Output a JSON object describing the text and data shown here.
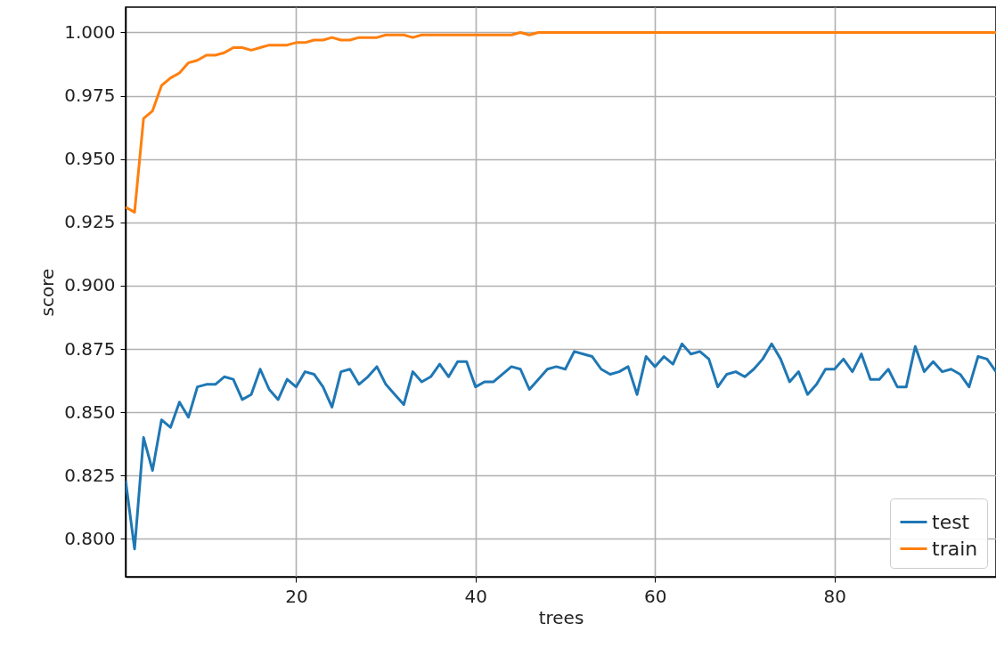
{
  "chart_data": {
    "type": "line",
    "xlabel": "trees",
    "ylabel": "score",
    "x": [
      1,
      2,
      3,
      4,
      5,
      6,
      7,
      8,
      9,
      10,
      11,
      12,
      13,
      14,
      15,
      16,
      17,
      18,
      19,
      20,
      21,
      22,
      23,
      24,
      25,
      26,
      27,
      28,
      29,
      30,
      31,
      32,
      33,
      34,
      35,
      36,
      37,
      38,
      39,
      40,
      41,
      42,
      43,
      44,
      45,
      46,
      47,
      48,
      49,
      50,
      51,
      52,
      53,
      54,
      55,
      56,
      57,
      58,
      59,
      60,
      61,
      62,
      63,
      64,
      65,
      66,
      67,
      68,
      69,
      70,
      71,
      72,
      73,
      74,
      75,
      76,
      77,
      78,
      79,
      80,
      81,
      82,
      83,
      84,
      85,
      86,
      87,
      88,
      89,
      90,
      91,
      92,
      93,
      94,
      95,
      96,
      97,
      98
    ],
    "series": [
      {
        "name": "test",
        "color": "#1f77b4",
        "values": [
          0.823,
          0.796,
          0.84,
          0.827,
          0.847,
          0.844,
          0.854,
          0.848,
          0.86,
          0.861,
          0.861,
          0.864,
          0.863,
          0.855,
          0.857,
          0.867,
          0.859,
          0.855,
          0.863,
          0.86,
          0.866,
          0.865,
          0.86,
          0.852,
          0.866,
          0.867,
          0.861,
          0.864,
          0.868,
          0.861,
          0.857,
          0.853,
          0.866,
          0.862,
          0.864,
          0.869,
          0.864,
          0.87,
          0.87,
          0.86,
          0.862,
          0.862,
          0.865,
          0.868,
          0.867,
          0.859,
          0.863,
          0.867,
          0.868,
          0.867,
          0.874,
          0.873,
          0.872,
          0.867,
          0.865,
          0.866,
          0.868,
          0.857,
          0.872,
          0.868,
          0.872,
          0.869,
          0.877,
          0.873,
          0.874,
          0.871,
          0.86,
          0.865,
          0.866,
          0.864,
          0.867,
          0.871,
          0.877,
          0.871,
          0.862,
          0.866,
          0.857,
          0.861,
          0.867,
          0.867,
          0.871,
          0.866,
          0.873,
          0.863,
          0.863,
          0.867,
          0.86,
          0.86,
          0.876,
          0.866,
          0.87,
          0.866,
          0.867,
          0.865,
          0.86,
          0.872,
          0.871,
          0.866
        ]
      },
      {
        "name": "train",
        "color": "#ff7f0e",
        "values": [
          0.931,
          0.929,
          0.966,
          0.969,
          0.979,
          0.982,
          0.984,
          0.988,
          0.989,
          0.991,
          0.991,
          0.992,
          0.994,
          0.994,
          0.993,
          0.994,
          0.995,
          0.995,
          0.995,
          0.996,
          0.996,
          0.997,
          0.997,
          0.998,
          0.997,
          0.997,
          0.998,
          0.998,
          0.998,
          0.999,
          0.999,
          0.999,
          0.998,
          0.999,
          0.999,
          0.999,
          0.999,
          0.999,
          0.999,
          0.999,
          0.999,
          0.999,
          0.999,
          0.999,
          1.0,
          0.999,
          1.0,
          1.0,
          1.0,
          1.0,
          1.0,
          1.0,
          1.0,
          1.0,
          1.0,
          1.0,
          1.0,
          1.0,
          1.0,
          1.0,
          1.0,
          1.0,
          1.0,
          1.0,
          1.0,
          1.0,
          1.0,
          1.0,
          1.0,
          1.0,
          1.0,
          1.0,
          1.0,
          1.0,
          1.0,
          1.0,
          1.0,
          1.0,
          1.0,
          1.0,
          1.0,
          1.0,
          1.0,
          1.0,
          1.0,
          1.0,
          1.0,
          1.0,
          1.0,
          1.0,
          1.0,
          1.0,
          1.0,
          1.0,
          1.0,
          1.0,
          1.0,
          1.0
        ]
      }
    ],
    "xlim": [
      1,
      98
    ],
    "ylim": [
      0.785,
      1.01
    ],
    "xticks": [
      20,
      40,
      60,
      80
    ],
    "yticks": [
      {
        "value": 0.8,
        "label": "0.800"
      },
      {
        "value": 0.825,
        "label": "0.825"
      },
      {
        "value": 0.85,
        "label": "0.850"
      },
      {
        "value": 0.875,
        "label": "0.875"
      },
      {
        "value": 0.9,
        "label": "0.900"
      },
      {
        "value": 0.925,
        "label": "0.925"
      },
      {
        "value": 0.95,
        "label": "0.950"
      },
      {
        "value": 0.975,
        "label": "0.975"
      },
      {
        "value": 1.0,
        "label": "1.000"
      }
    ],
    "grid": true,
    "legend": "bottom right",
    "marker": "none",
    "line_style": "solid"
  }
}
